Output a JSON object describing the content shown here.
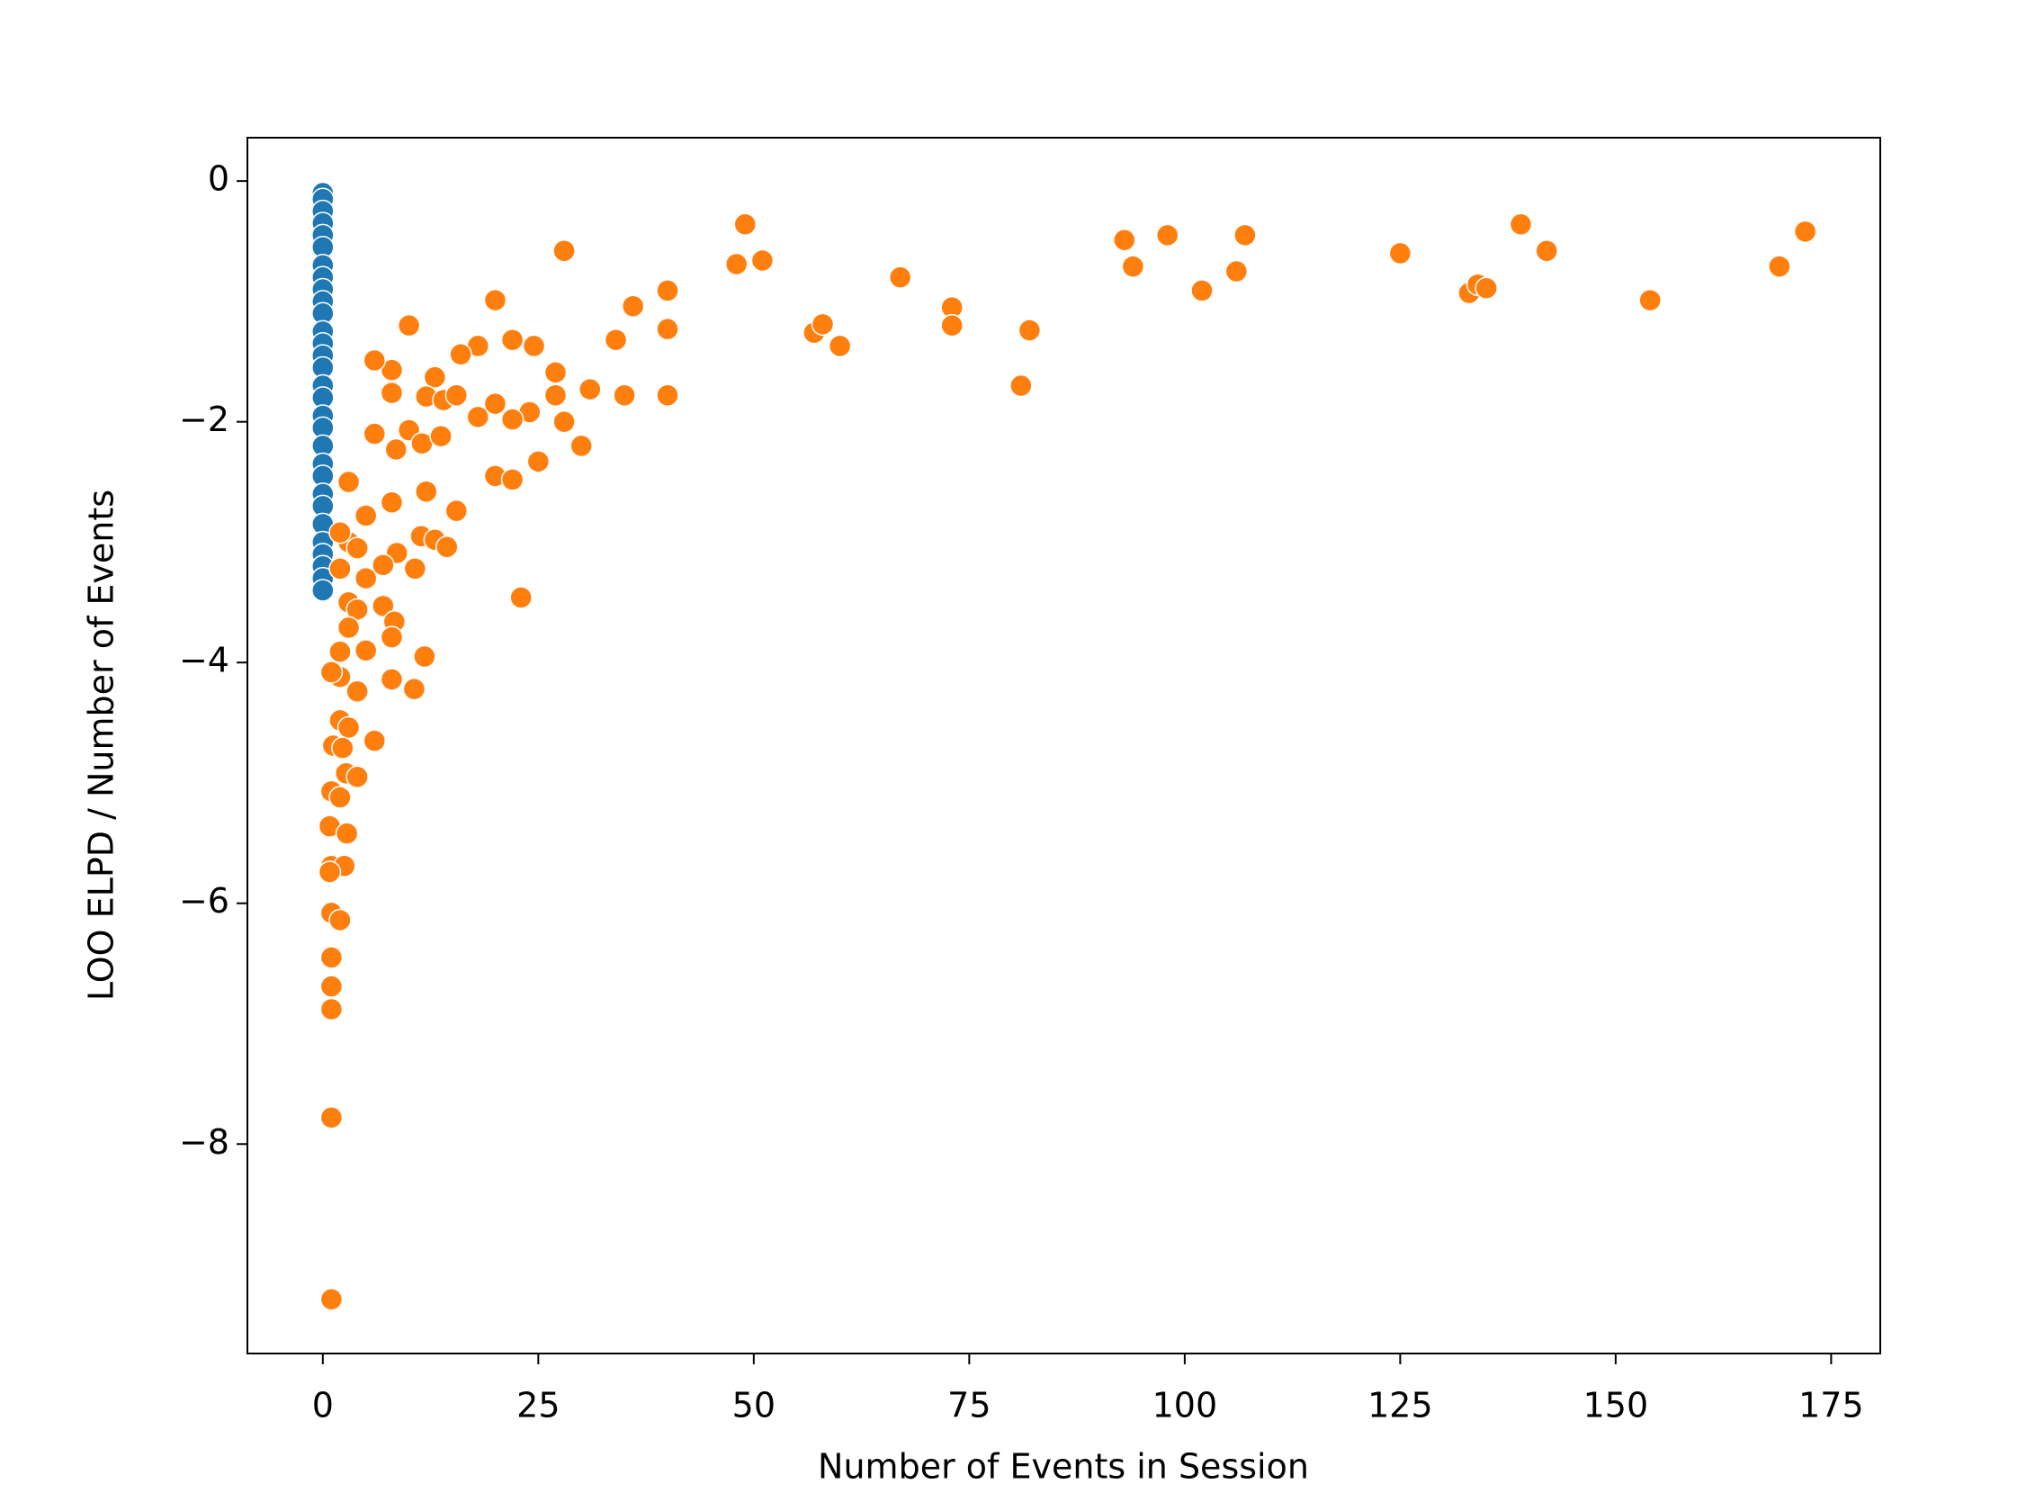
{
  "chart_data": {
    "type": "scatter",
    "xlabel": "Number of Events in Session",
    "ylabel": "LOO ELPD / Number of Events",
    "xlim": [
      -8.75,
      180.7
    ],
    "ylim": [
      -9.74,
      0.36
    ],
    "xticks": [
      0,
      25,
      50,
      75,
      100,
      125,
      150,
      175
    ],
    "yticks": [
      0,
      {
        "value": -2,
        "label": "−2"
      },
      {
        "value": -4,
        "label": "−4"
      },
      {
        "value": -6,
        "label": "−6"
      },
      {
        "value": -8,
        "label": "−8"
      }
    ],
    "series": [
      {
        "color": "#1f77b4",
        "x": [
          0,
          0,
          0,
          0,
          0,
          0,
          0,
          0,
          0,
          0,
          0,
          0,
          0,
          0,
          0,
          0,
          0,
          0,
          0,
          0,
          0,
          0,
          0,
          0,
          0,
          0,
          0,
          0,
          0,
          0
        ],
        "y": [
          -0.1,
          -0.15,
          -0.25,
          -0.35,
          -0.45,
          -0.55,
          -0.7,
          -0.8,
          -0.9,
          -1.0,
          -1.1,
          -1.25,
          -1.35,
          -1.45,
          -1.55,
          -1.7,
          -1.8,
          -1.95,
          -2.05,
          -2.2,
          -2.35,
          -2.45,
          -2.6,
          -2.7,
          -2.85,
          -3.0,
          -3.1,
          -3.2,
          -3.3,
          -3.4
        ]
      },
      {
        "color": "#ff7f0e",
        "x": [
          49,
          48,
          51,
          28,
          20,
          10,
          22,
          24.5,
          34,
          36,
          40,
          40,
          40,
          35,
          31,
          30,
          27,
          27,
          28,
          24,
          25,
          23,
          18,
          16,
          13,
          8,
          6,
          8,
          12,
          14,
          15.5,
          20,
          18,
          22,
          20,
          22,
          10,
          6,
          8.5,
          11.5,
          13.7,
          3,
          15.5,
          12,
          8,
          5,
          3,
          4,
          8.6,
          11.4,
          13,
          14.4,
          10.7,
          7,
          5,
          2,
          2,
          3,
          4,
          7,
          8.3,
          8,
          3,
          2,
          5,
          11.8,
          2,
          4,
          8,
          10.6,
          1,
          2,
          3,
          6,
          1.2,
          2.3,
          2.7,
          4,
          1,
          2,
          0.8,
          2.8,
          1,
          2.5,
          0.8,
          1,
          2,
          1,
          1,
          1,
          1,
          1,
          57,
          58,
          60,
          67,
          73,
          73,
          81,
          82,
          93,
          94,
          98,
          102,
          106,
          107,
          125,
          133,
          134,
          135,
          139,
          142,
          154,
          169,
          172
        ],
        "y": [
          -0.36,
          -0.69,
          -0.66,
          -0.58,
          -0.99,
          -1.2,
          -1.32,
          -1.37,
          -1.32,
          -1.04,
          -0.91,
          -1.23,
          -1.78,
          -1.78,
          -1.73,
          -2.2,
          -1.59,
          -1.78,
          -2.0,
          -1.92,
          -2.33,
          -3.46,
          -1.37,
          -1.44,
          -1.63,
          -1.57,
          -1.49,
          -1.76,
          -1.79,
          -1.82,
          -1.78,
          -1.85,
          -1.96,
          -1.98,
          -2.45,
          -2.48,
          -2.07,
          -2.1,
          -2.23,
          -2.18,
          -2.12,
          -2.5,
          -2.74,
          -2.58,
          -2.67,
          -2.78,
          -3.0,
          -3.05,
          -3.09,
          -2.95,
          -2.98,
          -3.04,
          -3.22,
          -3.19,
          -3.3,
          -2.92,
          -3.22,
          -3.5,
          -3.56,
          -3.53,
          -3.66,
          -3.79,
          -3.71,
          -3.91,
          -3.9,
          -3.95,
          -4.12,
          -4.24,
          -4.14,
          -4.22,
          -4.08,
          -4.48,
          -4.54,
          -4.65,
          -4.69,
          -4.71,
          -4.92,
          -4.95,
          -5.07,
          -5.12,
          -5.36,
          -5.42,
          -5.69,
          -5.69,
          -5.74,
          -6.08,
          -6.14,
          -6.45,
          -6.69,
          -6.88,
          -7.78,
          -9.29,
          -1.26,
          -1.19,
          -1.37,
          -0.8,
          -1.05,
          -1.2,
          -1.7,
          -1.24,
          -0.49,
          -0.71,
          -0.45,
          -0.91,
          -0.75,
          -0.45,
          -0.6,
          -0.93,
          -0.86,
          -0.89,
          -0.36,
          -0.58,
          -0.99,
          -0.71,
          -0.42
        ]
      }
    ]
  }
}
